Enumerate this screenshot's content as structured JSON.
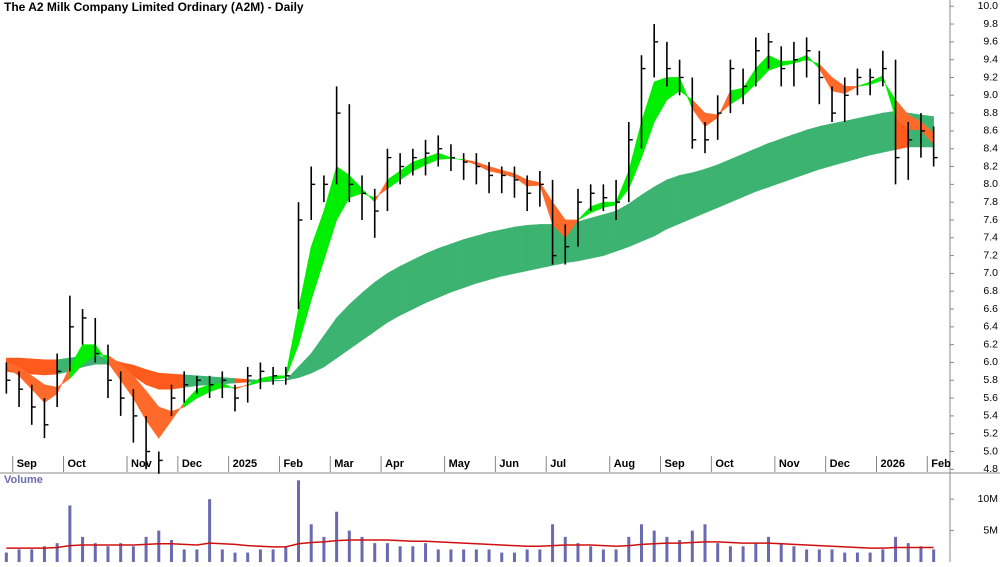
{
  "chart_data": [
    {
      "type": "ohlc",
      "title": "The A2 Milk Company Limited Ordinary (A2M) - Daily",
      "categories": [
        null,
        "Sep",
        null,
        null,
        null,
        "Oct",
        null,
        null,
        null,
        null,
        "Nov",
        null,
        null,
        null,
        "Dec",
        null,
        null,
        null,
        "2025",
        null,
        null,
        null,
        "Feb",
        null,
        null,
        null,
        "Mar",
        null,
        null,
        null,
        "Apr",
        null,
        null,
        null,
        null,
        "May",
        null,
        null,
        null,
        "Jun",
        null,
        null,
        null,
        "Jul",
        null,
        null,
        null,
        null,
        "Aug",
        null,
        null,
        null,
        "Sep",
        null,
        null,
        null,
        "Oct",
        null,
        null,
        null,
        null,
        "Nov",
        null,
        null,
        null,
        "Dec",
        null,
        null,
        null,
        "2026",
        null,
        null,
        null,
        "Feb"
      ],
      "high": [
        6.0,
        5.9,
        5.75,
        5.6,
        6.1,
        6.75,
        6.6,
        6.5,
        6.2,
        5.9,
        5.7,
        5.4,
        5.0,
        5.75,
        5.9,
        5.85,
        5.85,
        5.9,
        5.75,
        5.95,
        6.0,
        5.95,
        5.95,
        7.8,
        8.2,
        8.1,
        9.1,
        8.9,
        8.1,
        7.95,
        8.4,
        8.35,
        8.4,
        8.5,
        8.55,
        8.45,
        8.35,
        8.35,
        8.25,
        8.2,
        8.2,
        8.1,
        8.15,
        8.05,
        7.55,
        7.95,
        8.0,
        8.0,
        8.05,
        8.7,
        9.45,
        9.8,
        9.6,
        9.4,
        9.2,
        8.7,
        9.0,
        9.4,
        9.3,
        9.65,
        9.7,
        9.55,
        9.6,
        9.65,
        9.5,
        9.1,
        9.2,
        9.3,
        9.3,
        9.5,
        9.4,
        8.7,
        8.8,
        8.65
      ],
      "low": [
        5.65,
        5.5,
        5.3,
        5.15,
        5.5,
        5.9,
        6.2,
        6.0,
        5.6,
        5.4,
        5.1,
        4.8,
        4.75,
        5.4,
        5.55,
        5.65,
        5.6,
        5.6,
        5.45,
        5.55,
        5.7,
        5.75,
        5.75,
        6.6,
        7.6,
        7.8,
        8.0,
        7.8,
        7.6,
        7.4,
        7.7,
        8.0,
        8.1,
        8.1,
        8.2,
        8.15,
        8.05,
        8.0,
        7.9,
        7.9,
        7.85,
        7.7,
        7.75,
        7.1,
        7.1,
        7.3,
        7.7,
        7.7,
        7.6,
        7.8,
        8.4,
        9.2,
        9.1,
        9.0,
        8.4,
        8.35,
        8.5,
        8.8,
        8.9,
        9.1,
        9.3,
        9.1,
        9.1,
        9.2,
        8.9,
        8.7,
        8.7,
        9.0,
        9.0,
        9.1,
        8.0,
        8.05,
        8.3,
        8.2
      ],
      "close": [
        5.8,
        5.7,
        5.5,
        5.3,
        5.9,
        6.4,
        6.5,
        6.1,
        5.8,
        5.6,
        5.4,
        5.0,
        4.9,
        5.6,
        5.75,
        5.8,
        5.75,
        5.8,
        5.6,
        5.85,
        5.9,
        5.85,
        5.85,
        7.6,
        8.0,
        8.0,
        8.8,
        8.0,
        7.9,
        7.7,
        8.3,
        8.2,
        8.3,
        8.35,
        8.4,
        8.3,
        8.25,
        8.2,
        8.1,
        8.1,
        8.05,
        7.9,
        8.0,
        7.2,
        7.3,
        7.8,
        7.9,
        7.85,
        7.8,
        8.5,
        9.3,
        9.6,
        9.3,
        9.2,
        8.5,
        8.5,
        8.8,
        9.3,
        9.1,
        9.5,
        9.6,
        9.3,
        9.4,
        9.5,
        9.2,
        8.8,
        9.0,
        9.2,
        9.2,
        9.3,
        8.3,
        8.5,
        8.6,
        8.3
      ],
      "bar_color": "#000000",
      "long_ribbon": {
        "color": "#3cb371",
        "color_below": "#ff5a1e",
        "upper": [
          6.05,
          6.05,
          6.04,
          6.03,
          6.03,
          6.05,
          6.07,
          6.08,
          6.05,
          6.0,
          5.97,
          5.92,
          5.88,
          5.87,
          5.86,
          5.85,
          5.84,
          5.83,
          5.82,
          5.81,
          5.8,
          5.8,
          5.8,
          5.95,
          6.1,
          6.3,
          6.5,
          6.65,
          6.78,
          6.9,
          7.0,
          7.08,
          7.15,
          7.22,
          7.28,
          7.33,
          7.38,
          7.42,
          7.46,
          7.49,
          7.52,
          7.54,
          7.55,
          7.55,
          7.56,
          7.58,
          7.62,
          7.66,
          7.7,
          7.78,
          7.88,
          7.97,
          8.05,
          8.1,
          8.13,
          8.17,
          8.22,
          8.28,
          8.34,
          8.4,
          8.46,
          8.51,
          8.56,
          8.61,
          8.65,
          8.68,
          8.71,
          8.74,
          8.77,
          8.8,
          8.82,
          8.8,
          8.78,
          8.76
        ],
        "lower": [
          5.9,
          5.88,
          5.87,
          5.86,
          5.87,
          5.9,
          5.95,
          5.98,
          5.98,
          5.9,
          5.85,
          5.75,
          5.7,
          5.7,
          5.72,
          5.74,
          5.75,
          5.76,
          5.77,
          5.78,
          5.78,
          5.79,
          5.8,
          5.83,
          5.88,
          5.95,
          6.05,
          6.15,
          6.25,
          6.35,
          6.45,
          6.53,
          6.6,
          6.67,
          6.73,
          6.79,
          6.84,
          6.89,
          6.93,
          6.97,
          7.0,
          7.03,
          7.06,
          7.09,
          7.12,
          7.14,
          7.17,
          7.2,
          7.25,
          7.3,
          7.36,
          7.42,
          7.5,
          7.56,
          7.62,
          7.68,
          7.74,
          7.8,
          7.86,
          7.92,
          7.97,
          8.02,
          8.07,
          8.12,
          8.17,
          8.21,
          8.25,
          8.29,
          8.33,
          8.36,
          8.39,
          8.42,
          8.42,
          8.42
        ]
      },
      "short_ribbon": {
        "color": "#00ee00",
        "color_below": "#ff6a2a",
        "fast": [
          5.95,
          5.85,
          5.7,
          5.55,
          5.65,
          5.95,
          6.2,
          6.2,
          6.0,
          5.8,
          5.6,
          5.35,
          5.15,
          5.35,
          5.55,
          5.7,
          5.75,
          5.77,
          5.7,
          5.75,
          5.82,
          5.85,
          5.85,
          6.6,
          7.3,
          7.7,
          8.2,
          8.1,
          7.95,
          7.8,
          8.05,
          8.15,
          8.25,
          8.3,
          8.35,
          8.3,
          8.27,
          8.22,
          8.15,
          8.12,
          8.08,
          7.98,
          7.99,
          7.55,
          7.4,
          7.6,
          7.75,
          7.8,
          7.8,
          8.15,
          8.7,
          9.15,
          9.2,
          9.2,
          8.85,
          8.65,
          8.75,
          9.05,
          9.08,
          9.3,
          9.45,
          9.38,
          9.39,
          9.45,
          9.3,
          9.05,
          9.02,
          9.1,
          9.15,
          9.22,
          8.75,
          8.62,
          8.61,
          8.45
        ],
        "slow": [
          6.0,
          5.95,
          5.85,
          5.75,
          5.72,
          5.82,
          5.98,
          6.08,
          6.08,
          5.98,
          5.85,
          5.68,
          5.5,
          5.45,
          5.5,
          5.6,
          5.67,
          5.72,
          5.72,
          5.74,
          5.78,
          5.81,
          5.83,
          6.2,
          6.7,
          7.15,
          7.6,
          7.85,
          7.9,
          7.85,
          7.95,
          8.05,
          8.15,
          8.22,
          8.28,
          8.29,
          8.28,
          8.25,
          8.2,
          8.16,
          8.12,
          8.05,
          8.02,
          7.8,
          7.6,
          7.6,
          7.68,
          7.74,
          7.77,
          7.95,
          8.3,
          8.7,
          8.95,
          9.05,
          8.95,
          8.8,
          8.78,
          8.9,
          8.99,
          9.13,
          9.28,
          9.33,
          9.36,
          9.4,
          9.35,
          9.2,
          9.1,
          9.1,
          9.12,
          9.17,
          8.95,
          8.78,
          8.7,
          8.58
        ]
      },
      "ylim": [
        4.77,
        10.07
      ],
      "yticks": [
        4.8,
        {
          "value": 5,
          "label": "5.0"
        },
        5.2,
        5.4,
        5.6,
        5.8,
        {
          "value": 6,
          "label": "6.0"
        },
        6.2,
        6.4,
        6.6,
        6.8,
        {
          "value": 7,
          "label": "7.0"
        },
        7.2,
        7.4,
        7.6,
        7.8,
        {
          "value": 8,
          "label": "8.0"
        },
        8.2,
        8.4,
        8.6,
        8.8,
        {
          "value": 9,
          "label": "9.0"
        },
        9.2,
        9.4,
        9.6,
        9.8,
        {
          "value": 10,
          "label": "10.0"
        }
      ],
      "grid": false
    },
    {
      "type": "volume",
      "title": "Volume",
      "values": [
        1.5,
        2,
        2,
        2.5,
        3,
        9,
        4,
        3,
        2.5,
        3,
        2.5,
        4,
        5,
        3.5,
        2,
        2,
        10,
        2,
        1.5,
        1.5,
        2,
        2,
        2.5,
        13,
        6,
        4,
        8,
        5,
        4,
        3,
        3,
        2.5,
        2.5,
        3,
        2,
        2,
        2,
        2,
        2,
        1.5,
        1.5,
        2,
        2,
        6,
        4,
        3,
        2.5,
        2,
        2,
        4,
        6,
        5,
        4,
        3.5,
        5,
        6,
        3,
        2.5,
        2.5,
        3,
        4,
        3,
        2.5,
        2,
        2,
        2,
        1.5,
        1.5,
        1.5,
        2,
        4,
        3,
        2.5,
        2
      ],
      "average": [
        2.2,
        2.2,
        2.2,
        2.2,
        2.3,
        2.6,
        2.7,
        2.7,
        2.7,
        2.7,
        2.7,
        2.8,
        2.9,
        2.9,
        2.8,
        2.7,
        3.0,
        2.9,
        2.8,
        2.6,
        2.5,
        2.4,
        2.4,
        2.9,
        3.1,
        3.2,
        3.4,
        3.5,
        3.5,
        3.5,
        3.5,
        3.4,
        3.3,
        3.3,
        3.2,
        3.1,
        3.0,
        2.9,
        2.8,
        2.7,
        2.6,
        2.5,
        2.5,
        2.6,
        2.7,
        2.7,
        2.7,
        2.6,
        2.5,
        2.6,
        2.8,
        2.9,
        3.0,
        3.0,
        3.1,
        3.2,
        3.2,
        3.1,
        3.0,
        3.0,
        3.0,
        2.9,
        2.8,
        2.7,
        2.6,
        2.5,
        2.4,
        2.3,
        2.2,
        2.2,
        2.3,
        2.3,
        2.3,
        2.3
      ],
      "color": "#6a6ab0",
      "average_color": "#d01010",
      "ylim": [
        0,
        14
      ],
      "yticks": [
        {
          "value": 5,
          "label": "5M"
        },
        {
          "value": 10,
          "label": "10M"
        }
      ]
    }
  ]
}
